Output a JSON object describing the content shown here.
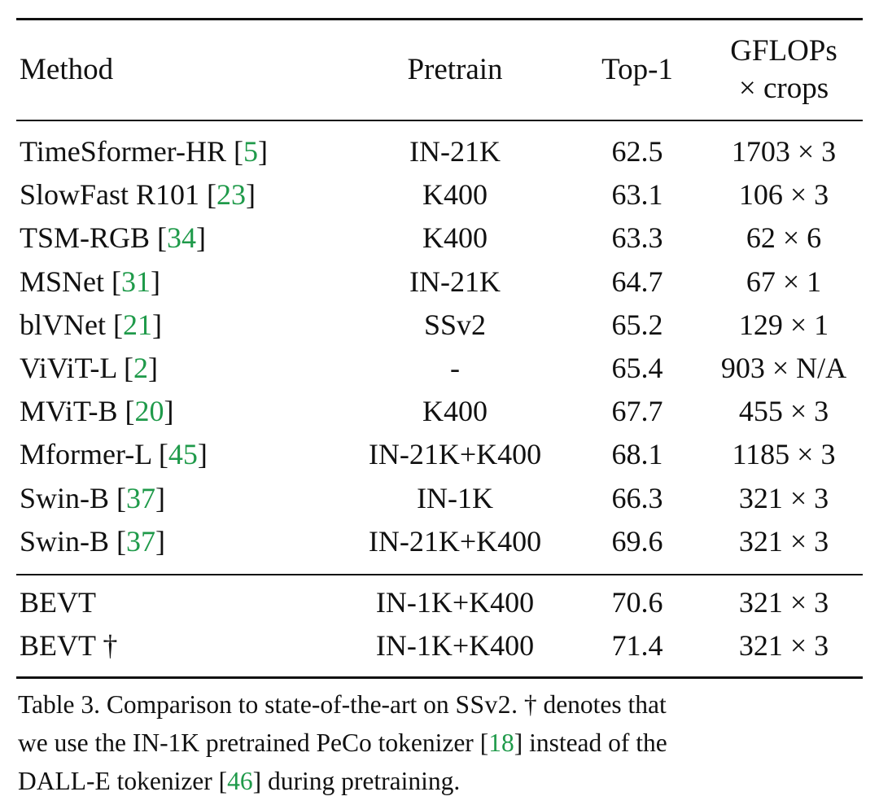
{
  "header": {
    "method": "Method",
    "pretrain": "Pretrain",
    "top1": "Top-1",
    "gflops_line1": "GFLOPs",
    "gflops_line2": "× crops"
  },
  "rows": [
    {
      "method": "TimeSformer-HR",
      "cite": "5",
      "pretrain": "IN-21K",
      "top1": "62.5",
      "gflops": "1703 × 3"
    },
    {
      "method": "SlowFast R101",
      "cite": "23",
      "pretrain": "K400",
      "top1": "63.1",
      "gflops": "106 × 3"
    },
    {
      "method": "TSM-RGB",
      "cite": "34",
      "pretrain": "K400",
      "top1": "63.3",
      "gflops": "62 × 6"
    },
    {
      "method": "MSNet",
      "cite": "31",
      "pretrain": "IN-21K",
      "top1": "64.7",
      "gflops": "67 × 1"
    },
    {
      "method": "blVNet",
      "cite": "21",
      "pretrain": "SSv2",
      "top1": "65.2",
      "gflops": "129 × 1"
    },
    {
      "method": "ViViT-L",
      "cite": "2",
      "pretrain": "-",
      "top1": "65.4",
      "gflops": "903 × N/A"
    },
    {
      "method": "MViT-B",
      "cite": "20",
      "pretrain": "K400",
      "top1": "67.7",
      "gflops": "455 × 3"
    },
    {
      "method": "Mformer-L",
      "cite": "45",
      "pretrain": "IN-21K+K400",
      "top1": "68.1",
      "gflops": "1185 × 3"
    },
    {
      "method": "Swin-B",
      "cite": "37",
      "pretrain": "IN-1K",
      "top1": "66.3",
      "gflops": "321 × 3"
    },
    {
      "method": "Swin-B",
      "cite": "37",
      "pretrain": "IN-21K+K400",
      "top1": "69.6",
      "gflops": "321 × 3"
    }
  ],
  "ours": [
    {
      "method": "BEVT",
      "pretrain": "IN-1K+K400",
      "top1": "70.6",
      "gflops": "321 × 3"
    },
    {
      "method": "BEVT †",
      "pretrain": "IN-1K+K400",
      "top1": "71.4",
      "gflops": "321 × 3"
    }
  ],
  "caption": {
    "line1_a": "Table 3. Comparison to state-of-the-art on ",
    "line1_dataset": "SSv2",
    "line1_b": ". † denotes that",
    "line2_a": "we use the IN-1K pretrained PeCo tokenizer ",
    "line2_cite": "18",
    "line2_b": " instead of the",
    "line3_a": "DALL-E tokenizer ",
    "line3_cite": "46",
    "line3_b": " during pretraining."
  },
  "colors": {
    "citation": "#1f9a4a",
    "rules": "#111111"
  }
}
